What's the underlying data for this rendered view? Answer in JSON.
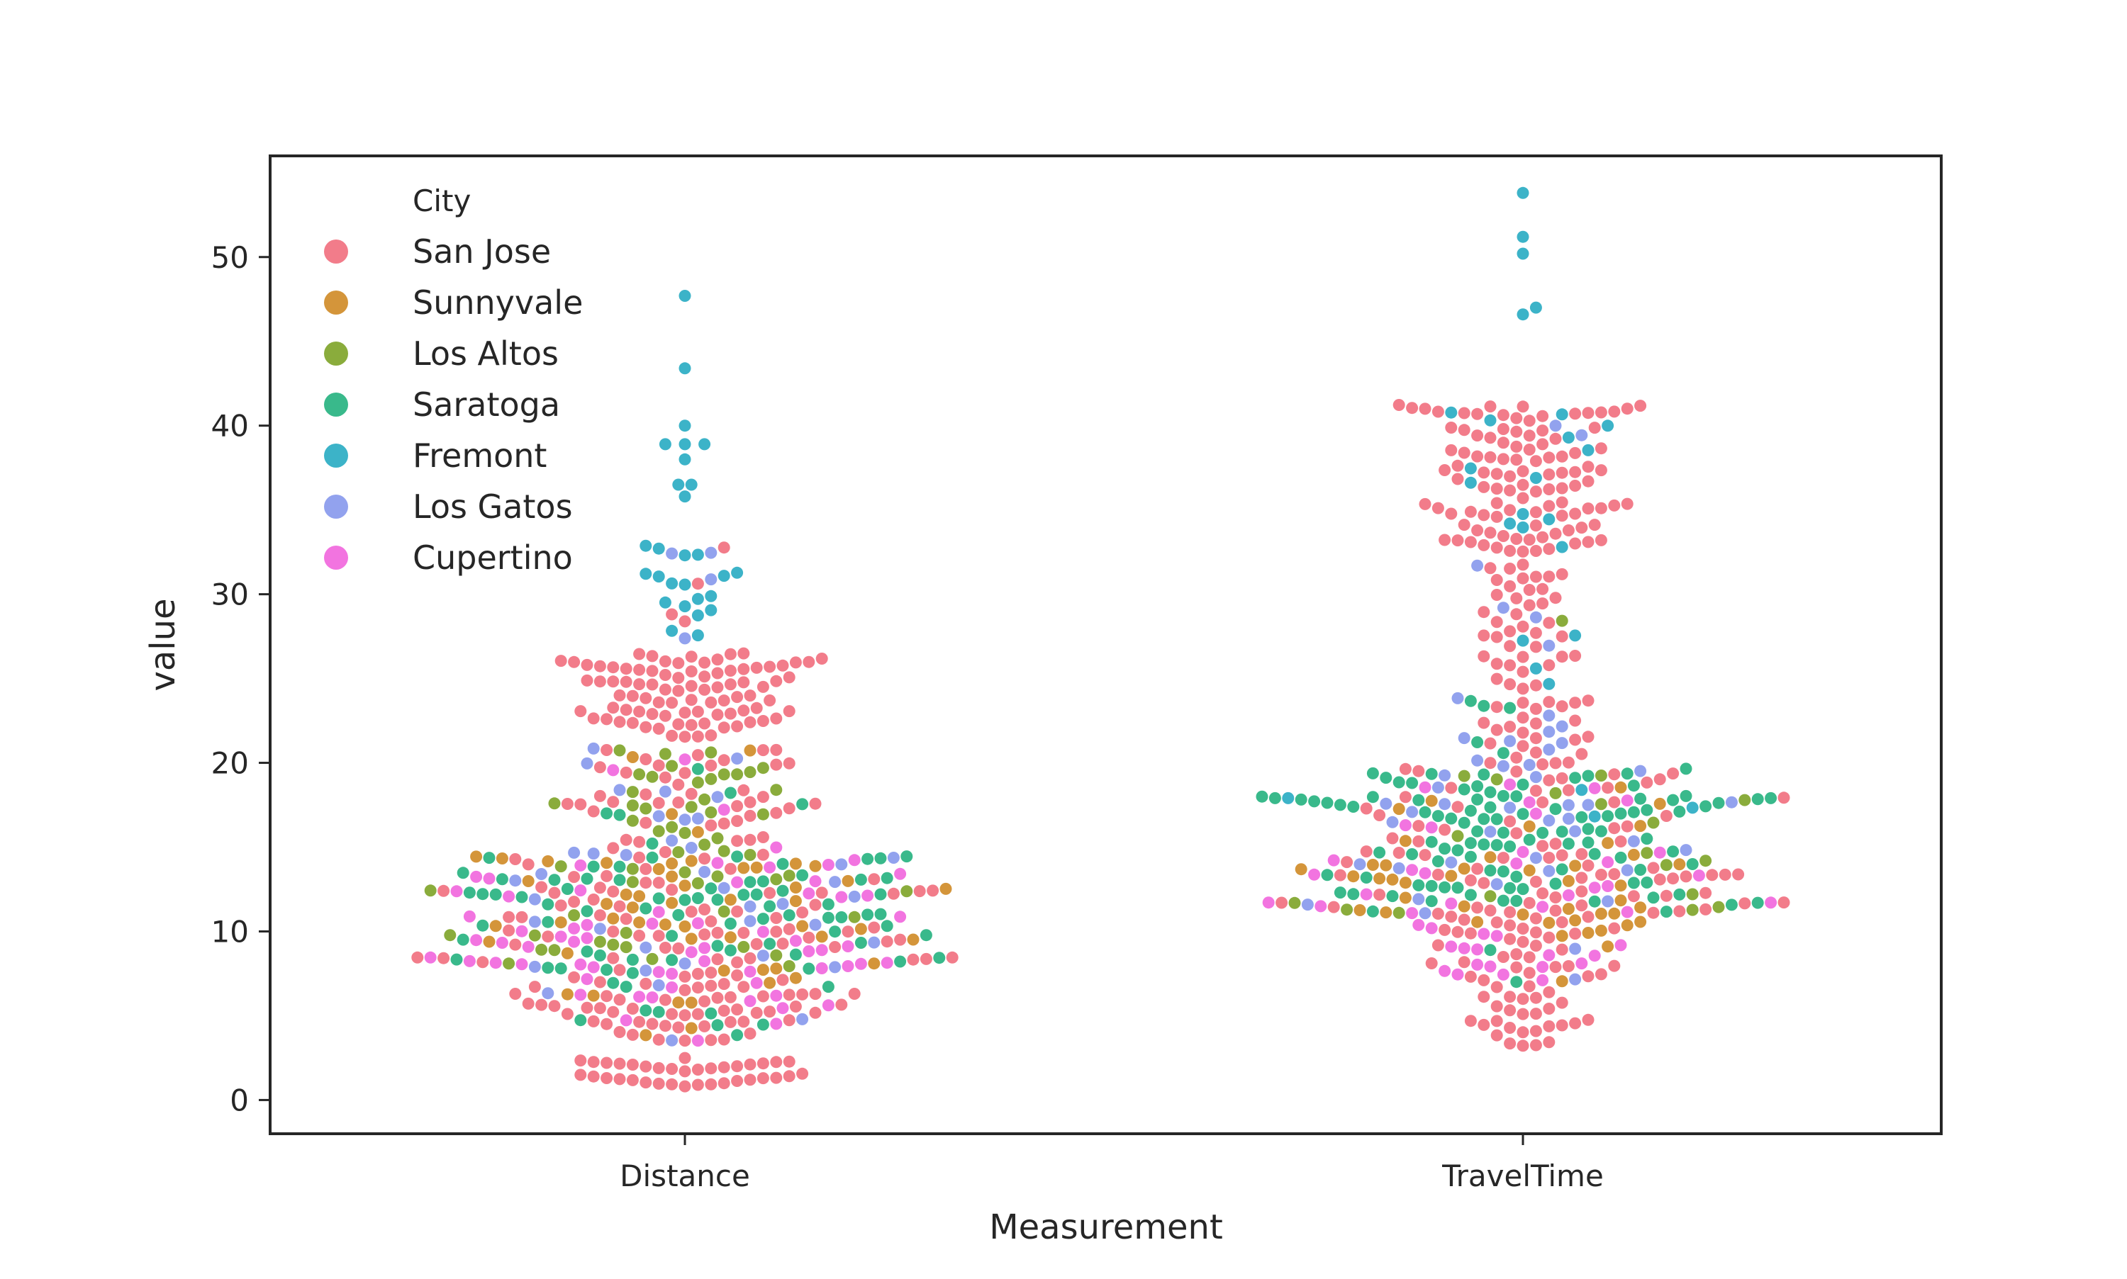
{
  "chart_data": {
    "type": "scatter",
    "subtype": "swarm",
    "xlabel": "Measurement",
    "ylabel": "value",
    "categories": [
      "Distance",
      "TravelTime"
    ],
    "ylim": [
      -2,
      56
    ],
    "yticks": [
      0,
      10,
      20,
      30,
      40,
      50
    ],
    "grid": false,
    "legend": {
      "title": "City",
      "placement": "top-left"
    },
    "series": [
      {
        "name": "San Jose",
        "color": "#f27c8a"
      },
      {
        "name": "Sunnyvale",
        "color": "#d4953a"
      },
      {
        "name": "Los Altos",
        "color": "#8aac3c"
      },
      {
        "name": "Saratoga",
        "color": "#39b98b"
      },
      {
        "name": "Fremont",
        "color": "#3cb3c8"
      },
      {
        "name": "Los Gatos",
        "color": "#92a2ee"
      },
      {
        "name": "Cupertino",
        "color": "#f274e0"
      }
    ],
    "groups": [
      {
        "category": "Distance",
        "bands": [
          {
            "min": 0.6,
            "max": 2.5,
            "counts": [
              36,
              0,
              0,
              0,
              0,
              0,
              0
            ]
          },
          {
            "min": 3.5,
            "max": 7.5,
            "counts": [
              60,
              8,
              0,
              10,
              0,
              4,
              14
            ]
          },
          {
            "min": 7.5,
            "max": 14.5,
            "counts": [
              70,
              42,
              26,
              70,
              0,
              22,
              50
            ]
          },
          {
            "min": 14.5,
            "max": 21.0,
            "counts": [
              44,
              4,
              30,
              6,
              0,
              14,
              4
            ]
          },
          {
            "min": 21.5,
            "max": 26.5,
            "counts": [
              88,
              0,
              0,
              0,
              0,
              0,
              0
            ]
          },
          {
            "min": 26.5,
            "max": 33.0,
            "counts": [
              4,
              0,
              0,
              0,
              18,
              4,
              0
            ]
          },
          {
            "min": 35.5,
            "max": 47.8,
            "values": [
              35.8,
              36.5,
              36.5,
              38.0,
              38.9,
              38.9,
              38.9,
              40.0,
              43.4,
              47.7
            ],
            "series": "Fremont"
          }
        ]
      },
      {
        "category": "TravelTime",
        "bands": [
          {
            "min": 3.0,
            "max": 7.0,
            "counts": [
              28,
              0,
              0,
              0,
              0,
              0,
              0
            ]
          },
          {
            "min": 7.0,
            "max": 11.0,
            "counts": [
              34,
              10,
              0,
              2,
              0,
              2,
              18
            ]
          },
          {
            "min": 11.0,
            "max": 15.0,
            "counts": [
              46,
              26,
              10,
              40,
              0,
              12,
              20
            ]
          },
          {
            "min": 15.0,
            "max": 19.5,
            "counts": [
              30,
              8,
              8,
              64,
              4,
              16,
              8
            ]
          },
          {
            "min": 19.5,
            "max": 24.0,
            "counts": [
              28,
              0,
              0,
              6,
              0,
              12,
              0
            ]
          },
          {
            "min": 24.0,
            "max": 32.0,
            "counts": [
              40,
              0,
              1,
              0,
              4,
              4,
              0
            ]
          },
          {
            "min": 32.5,
            "max": 41.5,
            "counts": [
              106,
              0,
              0,
              0,
              14,
              2,
              0
            ]
          },
          {
            "min": 46.5,
            "max": 53.9,
            "values": [
              46.6,
              47.0,
              50.2,
              51.2,
              53.8
            ],
            "series": "Fremont"
          }
        ]
      }
    ]
  }
}
